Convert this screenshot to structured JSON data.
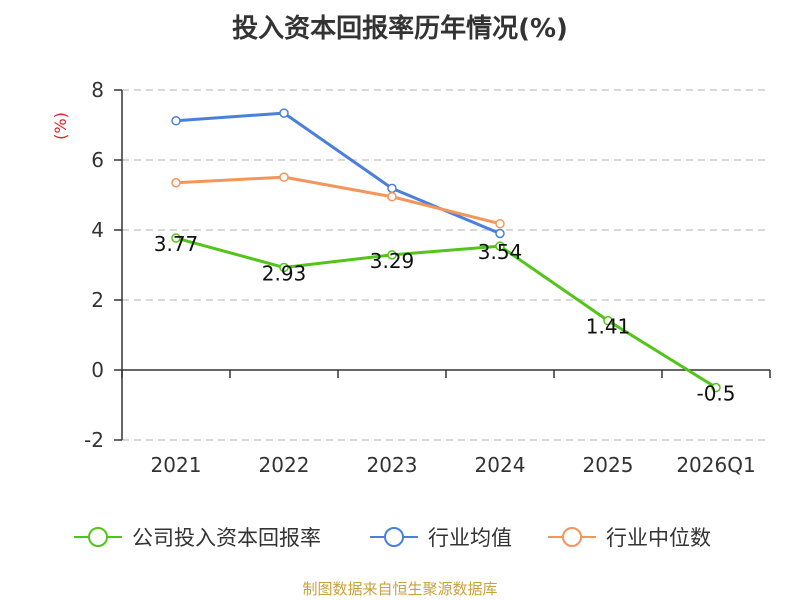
{
  "title": "投入资本回报率历年情况(%)",
  "source": "制图数据来自恒生聚源数据库",
  "colors": {
    "company": "#52c41a",
    "industry_mean": "#4a7fdc",
    "industry_median": "#f4955a",
    "ylabel": "#e02020",
    "source": "#c8a23c"
  },
  "chart_data": {
    "type": "line",
    "categories": [
      "2021",
      "2022",
      "2023",
      "2024",
      "2025",
      "2026Q1"
    ],
    "ylabel": "(%)",
    "ylim": [
      -2,
      8
    ],
    "yticks": [
      -2,
      0,
      2,
      4,
      6,
      8
    ],
    "grid": true,
    "legend_position": "bottom",
    "series": [
      {
        "name": "公司投入资本回报率",
        "color_key": "company",
        "values": [
          3.77,
          2.93,
          3.29,
          3.54,
          1.41,
          -0.5
        ],
        "labels": [
          "3.77",
          "2.93",
          "3.29",
          "3.54",
          "1.41",
          "-0.5"
        ]
      },
      {
        "name": "行业均值",
        "color_key": "industry_mean",
        "values": [
          7.12,
          7.34,
          5.19,
          3.9,
          null,
          null
        ]
      },
      {
        "name": "行业中位数",
        "color_key": "industry_median",
        "values": [
          5.35,
          5.51,
          4.95,
          4.18,
          null,
          null
        ]
      }
    ]
  }
}
